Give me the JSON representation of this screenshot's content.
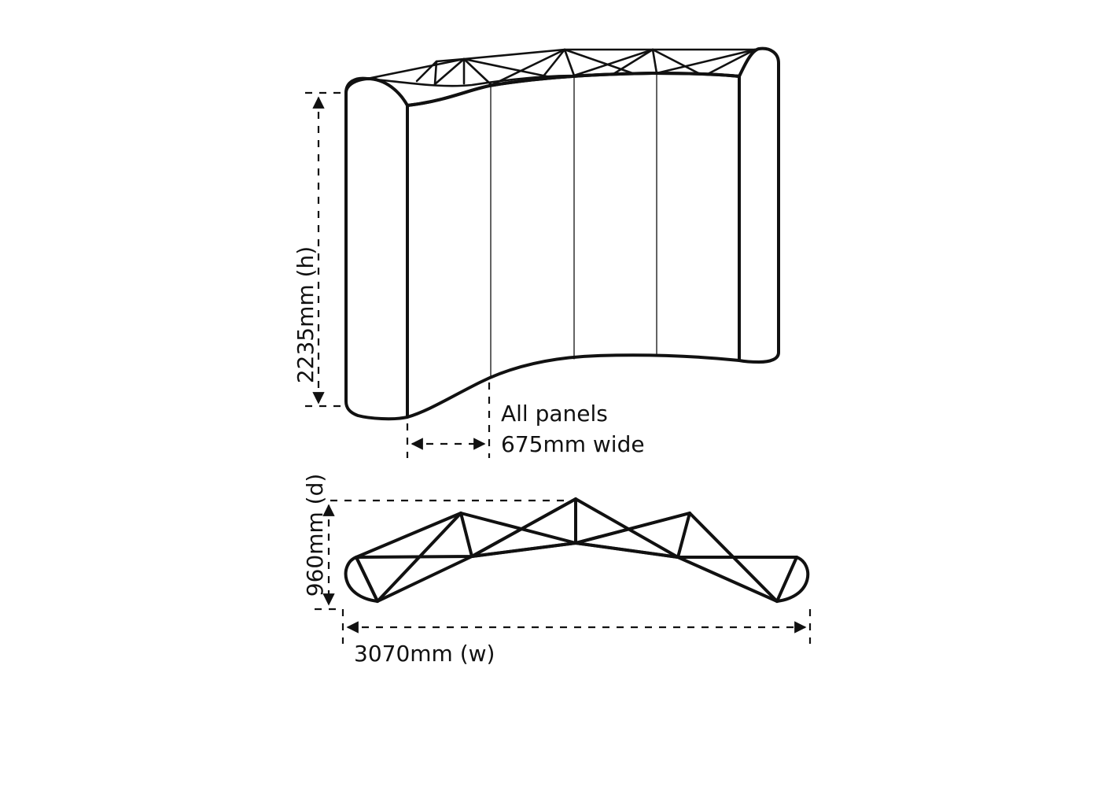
{
  "labels": {
    "height": "2235mm (h)",
    "panels_line1": "All panels",
    "panels_line2": "675mm wide",
    "depth": "960mm (d)",
    "width": "3070mm (w)"
  },
  "colors": {
    "line": "#111111",
    "background": "#ffffff"
  }
}
